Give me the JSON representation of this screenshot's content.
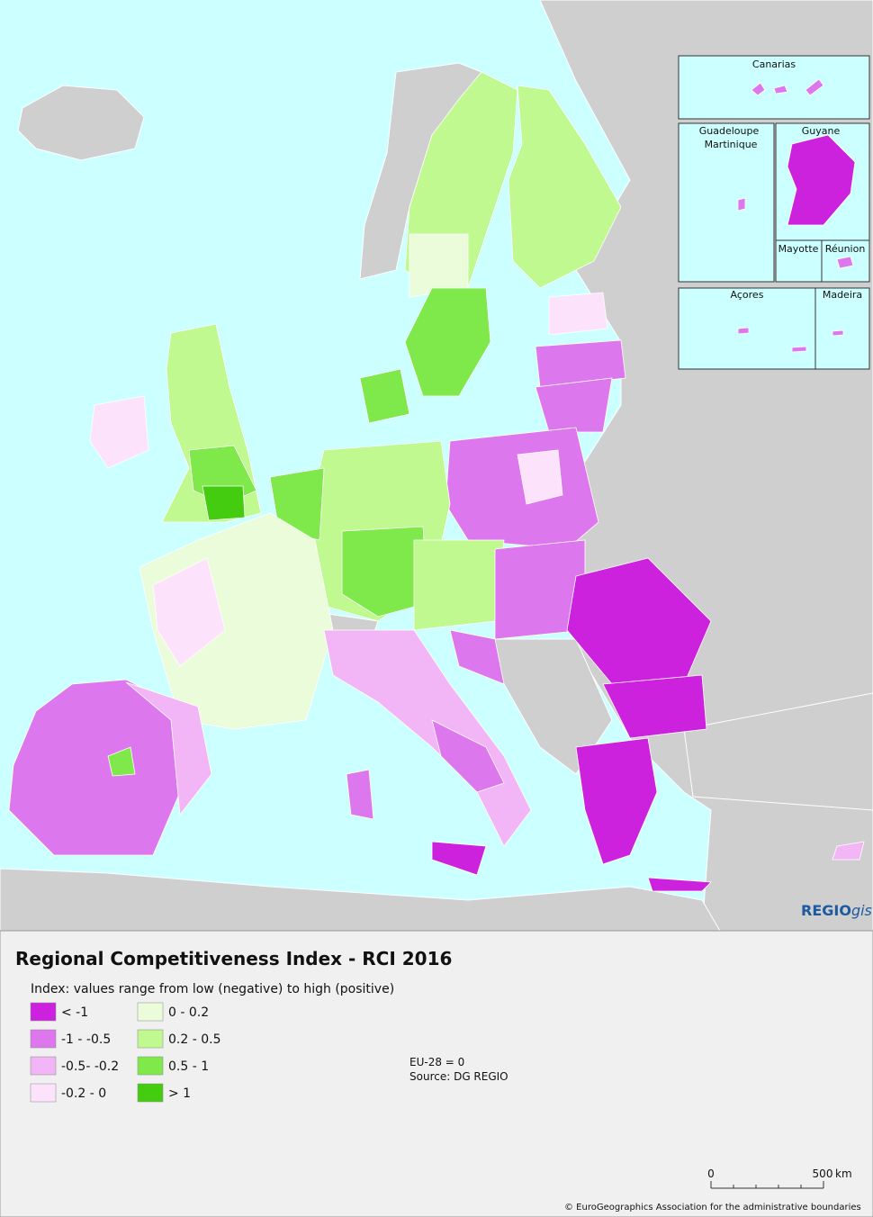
{
  "map": {
    "insets": [
      "Canarias",
      "Guadeloupe",
      "Martinique",
      "Guyane",
      "Mayotte",
      "Réunion",
      "Açores",
      "Madeira"
    ],
    "logo": {
      "bold": "REGIO",
      "italic": "gis"
    }
  },
  "legend": {
    "title": "Regional Competitiveness Index - RCI 2016",
    "subtitle": "Index: values range from low (negative) to high (positive)",
    "classes": [
      {
        "label": "< -1",
        "color": "#cc22dd"
      },
      {
        "label": "-1 - -0.5",
        "color": "#dd77ee"
      },
      {
        "label": "-0.5- -0.2",
        "color": "#f2b5f6"
      },
      {
        "label": "-0.2 - 0",
        "color": "#fde2fb"
      },
      {
        "label": "0 - 0.2",
        "color": "#eafcd9"
      },
      {
        "label": "0.2 - 0.5",
        "color": "#bff98f"
      },
      {
        "label": "0.5 - 1",
        "color": "#7fe84a"
      },
      {
        "label": "> 1",
        "color": "#44cc11"
      }
    ],
    "notes": [
      "EU-28 = 0",
      "Source: DG REGIO"
    ]
  },
  "scale_bar": {
    "start": "0",
    "end": "500",
    "unit": "km"
  },
  "copyright": "© EuroGeographics Association for the administrative boundaries"
}
